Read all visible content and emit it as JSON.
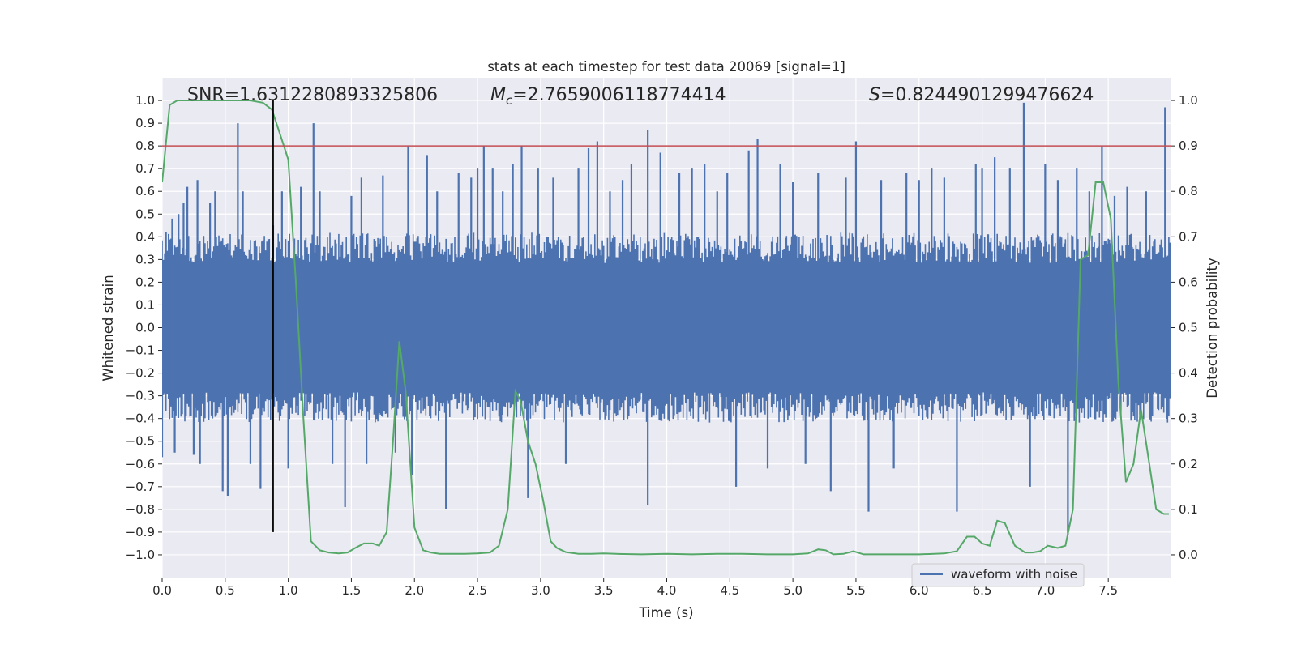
{
  "chart_data": {
    "type": "line",
    "title": "stats at each timestep for test data 20069 [signal=1]",
    "xlabel": "Time (s)",
    "ylabel_left": "Whitened strain",
    "ylabel_right": "Detection probability",
    "xlim": [
      0.0,
      8.0
    ],
    "ylim_left": [
      -1.1,
      1.1
    ],
    "ylim_right": [
      -0.05,
      1.05
    ],
    "x_ticks": [
      0.0,
      0.5,
      1.0,
      1.5,
      2.0,
      2.5,
      3.0,
      3.5,
      4.0,
      4.5,
      5.0,
      5.5,
      6.0,
      6.5,
      7.0,
      7.5
    ],
    "x_tick_labels": [
      "0.0",
      "0.5",
      "1.0",
      "1.5",
      "2.0",
      "2.5",
      "3.0",
      "3.5",
      "4.0",
      "4.5",
      "5.0",
      "5.5",
      "6.0",
      "6.5",
      "7.0",
      "7.5"
    ],
    "y_left_ticks": [
      1.0,
      0.9,
      0.8,
      0.7,
      0.6,
      0.5,
      0.4,
      0.3,
      0.2,
      0.1,
      0.0,
      -0.1,
      -0.2,
      -0.3,
      -0.4,
      -0.5,
      -0.6,
      -0.7,
      -0.8,
      -0.9,
      -1.0
    ],
    "y_left_tick_labels": [
      "1.0",
      "0.9",
      "0.8",
      "0.7",
      "0.6",
      "0.5",
      "0.4",
      "0.3",
      "0.2",
      "0.1",
      "0.0",
      "−0.1",
      "−0.2",
      "−0.3",
      "−0.4",
      "−0.5",
      "−0.6",
      "−0.7",
      "−0.8",
      "−0.9",
      "−1.0"
    ],
    "y_right_ticks": [
      1.0,
      0.9,
      0.8,
      0.7,
      0.6,
      0.5,
      0.4,
      0.3,
      0.2,
      0.1,
      0.0
    ],
    "y_right_tick_labels": [
      "1.0",
      "0.9",
      "0.8",
      "0.7",
      "0.6",
      "0.5",
      "0.4",
      "0.3",
      "0.2",
      "0.1",
      "0.0"
    ],
    "annotations": {
      "snr": "SNR=1.6312280893325806",
      "mc_symbol": "M",
      "mc_sub": "c",
      "mc_value": "=2.7659006118774414",
      "s_symbol": "S",
      "s_value": "=0.8244901299476624"
    },
    "legend": {
      "label": "waveform with noise",
      "placement": "lower-right"
    },
    "threshold_line": {
      "y": 0.9,
      "axis": "right",
      "color": "#c44e52"
    },
    "marker_line": {
      "x": 0.88,
      "y_range": [
        -0.9,
        1.0
      ],
      "color": "#000000"
    },
    "waveform": {
      "name": "waveform with noise",
      "color": "#4c72b0",
      "fs_bins": 800,
      "base_amplitude": 0.38,
      "spikes": [
        {
          "x": 0.0,
          "y": -0.57
        },
        {
          "x": 0.03,
          "y": 0.42
        },
        {
          "x": 0.08,
          "y": 0.48
        },
        {
          "x": 0.1,
          "y": -0.55
        },
        {
          "x": 0.13,
          "y": 0.5
        },
        {
          "x": 0.17,
          "y": 0.55
        },
        {
          "x": 0.2,
          "y": 0.62
        },
        {
          "x": 0.25,
          "y": -0.56
        },
        {
          "x": 0.28,
          "y": 0.65
        },
        {
          "x": 0.3,
          "y": -0.6
        },
        {
          "x": 0.38,
          "y": 0.55
        },
        {
          "x": 0.42,
          "y": 0.6
        },
        {
          "x": 0.48,
          "y": -0.72
        },
        {
          "x": 0.52,
          "y": -0.74
        },
        {
          "x": 0.6,
          "y": 0.9
        },
        {
          "x": 0.64,
          "y": 0.6
        },
        {
          "x": 0.7,
          "y": -0.6
        },
        {
          "x": 0.78,
          "y": -0.71
        },
        {
          "x": 0.88,
          "y": 0.45
        },
        {
          "x": 0.95,
          "y": 0.6
        },
        {
          "x": 1.0,
          "y": -0.62
        },
        {
          "x": 1.1,
          "y": 0.62
        },
        {
          "x": 1.2,
          "y": 0.9
        },
        {
          "x": 1.25,
          "y": 0.6
        },
        {
          "x": 1.35,
          "y": -0.6
        },
        {
          "x": 1.45,
          "y": -0.79
        },
        {
          "x": 1.5,
          "y": 0.58
        },
        {
          "x": 1.58,
          "y": 0.66
        },
        {
          "x": 1.62,
          "y": -0.6
        },
        {
          "x": 1.75,
          "y": 0.67
        },
        {
          "x": 1.85,
          "y": -0.55
        },
        {
          "x": 1.95,
          "y": 0.8
        },
        {
          "x": 1.98,
          "y": -0.65
        },
        {
          "x": 2.1,
          "y": 0.76
        },
        {
          "x": 2.18,
          "y": 0.6
        },
        {
          "x": 2.25,
          "y": -0.8
        },
        {
          "x": 2.35,
          "y": 0.68
        },
        {
          "x": 2.45,
          "y": 0.66
        },
        {
          "x": 2.5,
          "y": 0.7
        },
        {
          "x": 2.55,
          "y": 0.8
        },
        {
          "x": 2.62,
          "y": 0.7
        },
        {
          "x": 2.7,
          "y": 0.6
        },
        {
          "x": 2.78,
          "y": 0.72
        },
        {
          "x": 2.85,
          "y": 0.8
        },
        {
          "x": 2.9,
          "y": -0.75
        },
        {
          "x": 2.98,
          "y": 0.7
        },
        {
          "x": 3.1,
          "y": 0.66
        },
        {
          "x": 3.2,
          "y": -0.6
        },
        {
          "x": 3.3,
          "y": 0.7
        },
        {
          "x": 3.38,
          "y": 0.79
        },
        {
          "x": 3.45,
          "y": 0.82
        },
        {
          "x": 3.55,
          "y": 0.6
        },
        {
          "x": 3.65,
          "y": 0.65
        },
        {
          "x": 3.72,
          "y": 0.72
        },
        {
          "x": 3.85,
          "y": 0.87
        },
        {
          "x": 3.85,
          "y": -0.78
        },
        {
          "x": 3.95,
          "y": 0.77
        },
        {
          "x": 4.1,
          "y": 0.68
        },
        {
          "x": 4.2,
          "y": 0.7
        },
        {
          "x": 4.3,
          "y": 0.72
        },
        {
          "x": 4.4,
          "y": 0.6
        },
        {
          "x": 4.48,
          "y": 0.68
        },
        {
          "x": 4.55,
          "y": -0.7
        },
        {
          "x": 4.65,
          "y": 0.78
        },
        {
          "x": 4.72,
          "y": 0.83
        },
        {
          "x": 4.8,
          "y": -0.62
        },
        {
          "x": 4.9,
          "y": 0.72
        },
        {
          "x": 5.0,
          "y": 0.64
        },
        {
          "x": 5.1,
          "y": -0.6
        },
        {
          "x": 5.2,
          "y": 0.68
        },
        {
          "x": 5.3,
          "y": -0.72
        },
        {
          "x": 5.42,
          "y": 0.66
        },
        {
          "x": 5.5,
          "y": 0.82
        },
        {
          "x": 5.6,
          "y": -0.81
        },
        {
          "x": 5.7,
          "y": 0.65
        },
        {
          "x": 5.8,
          "y": -0.62
        },
        {
          "x": 5.9,
          "y": 0.68
        },
        {
          "x": 6.0,
          "y": 0.65
        },
        {
          "x": 6.1,
          "y": 0.7
        },
        {
          "x": 6.2,
          "y": 0.66
        },
        {
          "x": 6.3,
          "y": -0.81
        },
        {
          "x": 6.45,
          "y": 0.72
        },
        {
          "x": 6.5,
          "y": 0.7
        },
        {
          "x": 6.6,
          "y": 0.75
        },
        {
          "x": 6.72,
          "y": 0.7
        },
        {
          "x": 6.83,
          "y": 0.99
        },
        {
          "x": 6.88,
          "y": -0.7
        },
        {
          "x": 7.0,
          "y": 0.72
        },
        {
          "x": 7.1,
          "y": 0.65
        },
        {
          "x": 7.18,
          "y": -0.91
        },
        {
          "x": 7.25,
          "y": 0.7
        },
        {
          "x": 7.35,
          "y": 0.6
        },
        {
          "x": 7.45,
          "y": 0.8
        },
        {
          "x": 7.55,
          "y": 0.58
        },
        {
          "x": 7.65,
          "y": 0.62
        },
        {
          "x": 7.8,
          "y": 0.6
        },
        {
          "x": 7.95,
          "y": 0.97
        }
      ]
    },
    "probability": {
      "name": "detection probability",
      "color": "#55a868",
      "x": [
        0.0,
        0.06,
        0.12,
        0.2,
        0.3,
        0.4,
        0.5,
        0.6,
        0.7,
        0.8,
        0.87,
        0.93,
        1.0,
        1.06,
        1.12,
        1.18,
        1.25,
        1.32,
        1.4,
        1.47,
        1.53,
        1.6,
        1.67,
        1.72,
        1.78,
        1.83,
        1.88,
        1.93,
        2.0,
        2.07,
        2.13,
        2.2,
        2.3,
        2.4,
        2.5,
        2.6,
        2.67,
        2.74,
        2.8,
        2.84,
        2.9,
        2.96,
        3.02,
        3.08,
        3.13,
        3.2,
        3.3,
        3.4,
        3.5,
        3.6,
        3.8,
        4.0,
        4.2,
        4.4,
        4.6,
        4.8,
        5.0,
        5.12,
        5.2,
        5.26,
        5.32,
        5.4,
        5.48,
        5.56,
        5.64,
        5.8,
        6.0,
        6.2,
        6.3,
        6.38,
        6.44,
        6.5,
        6.56,
        6.62,
        6.68,
        6.76,
        6.84,
        6.9,
        6.96,
        7.02,
        7.1,
        7.16,
        7.22,
        7.28,
        7.34,
        7.4,
        7.46,
        7.52,
        7.58,
        7.64,
        7.7,
        7.76,
        7.82,
        7.88,
        7.94,
        7.98
      ],
      "y": [
        0.82,
        0.99,
        1.0,
        1.0,
        1.0,
        1.0,
        1.0,
        1.0,
        1.0,
        0.995,
        0.98,
        0.93,
        0.87,
        0.6,
        0.3,
        0.03,
        0.01,
        0.005,
        0.003,
        0.005,
        0.015,
        0.025,
        0.025,
        0.02,
        0.05,
        0.25,
        0.47,
        0.36,
        0.06,
        0.01,
        0.005,
        0.002,
        0.002,
        0.002,
        0.003,
        0.005,
        0.02,
        0.1,
        0.36,
        0.34,
        0.25,
        0.2,
        0.12,
        0.03,
        0.015,
        0.006,
        0.002,
        0.002,
        0.003,
        0.002,
        0.001,
        0.002,
        0.001,
        0.002,
        0.002,
        0.001,
        0.001,
        0.003,
        0.012,
        0.01,
        0.001,
        0.002,
        0.008,
        0.001,
        0.001,
        0.001,
        0.001,
        0.003,
        0.008,
        0.04,
        0.04,
        0.025,
        0.02,
        0.075,
        0.07,
        0.02,
        0.005,
        0.005,
        0.008,
        0.02,
        0.015,
        0.02,
        0.1,
        0.65,
        0.66,
        0.82,
        0.82,
        0.74,
        0.38,
        0.16,
        0.2,
        0.32,
        0.21,
        0.1,
        0.09,
        0.09
      ]
    }
  }
}
